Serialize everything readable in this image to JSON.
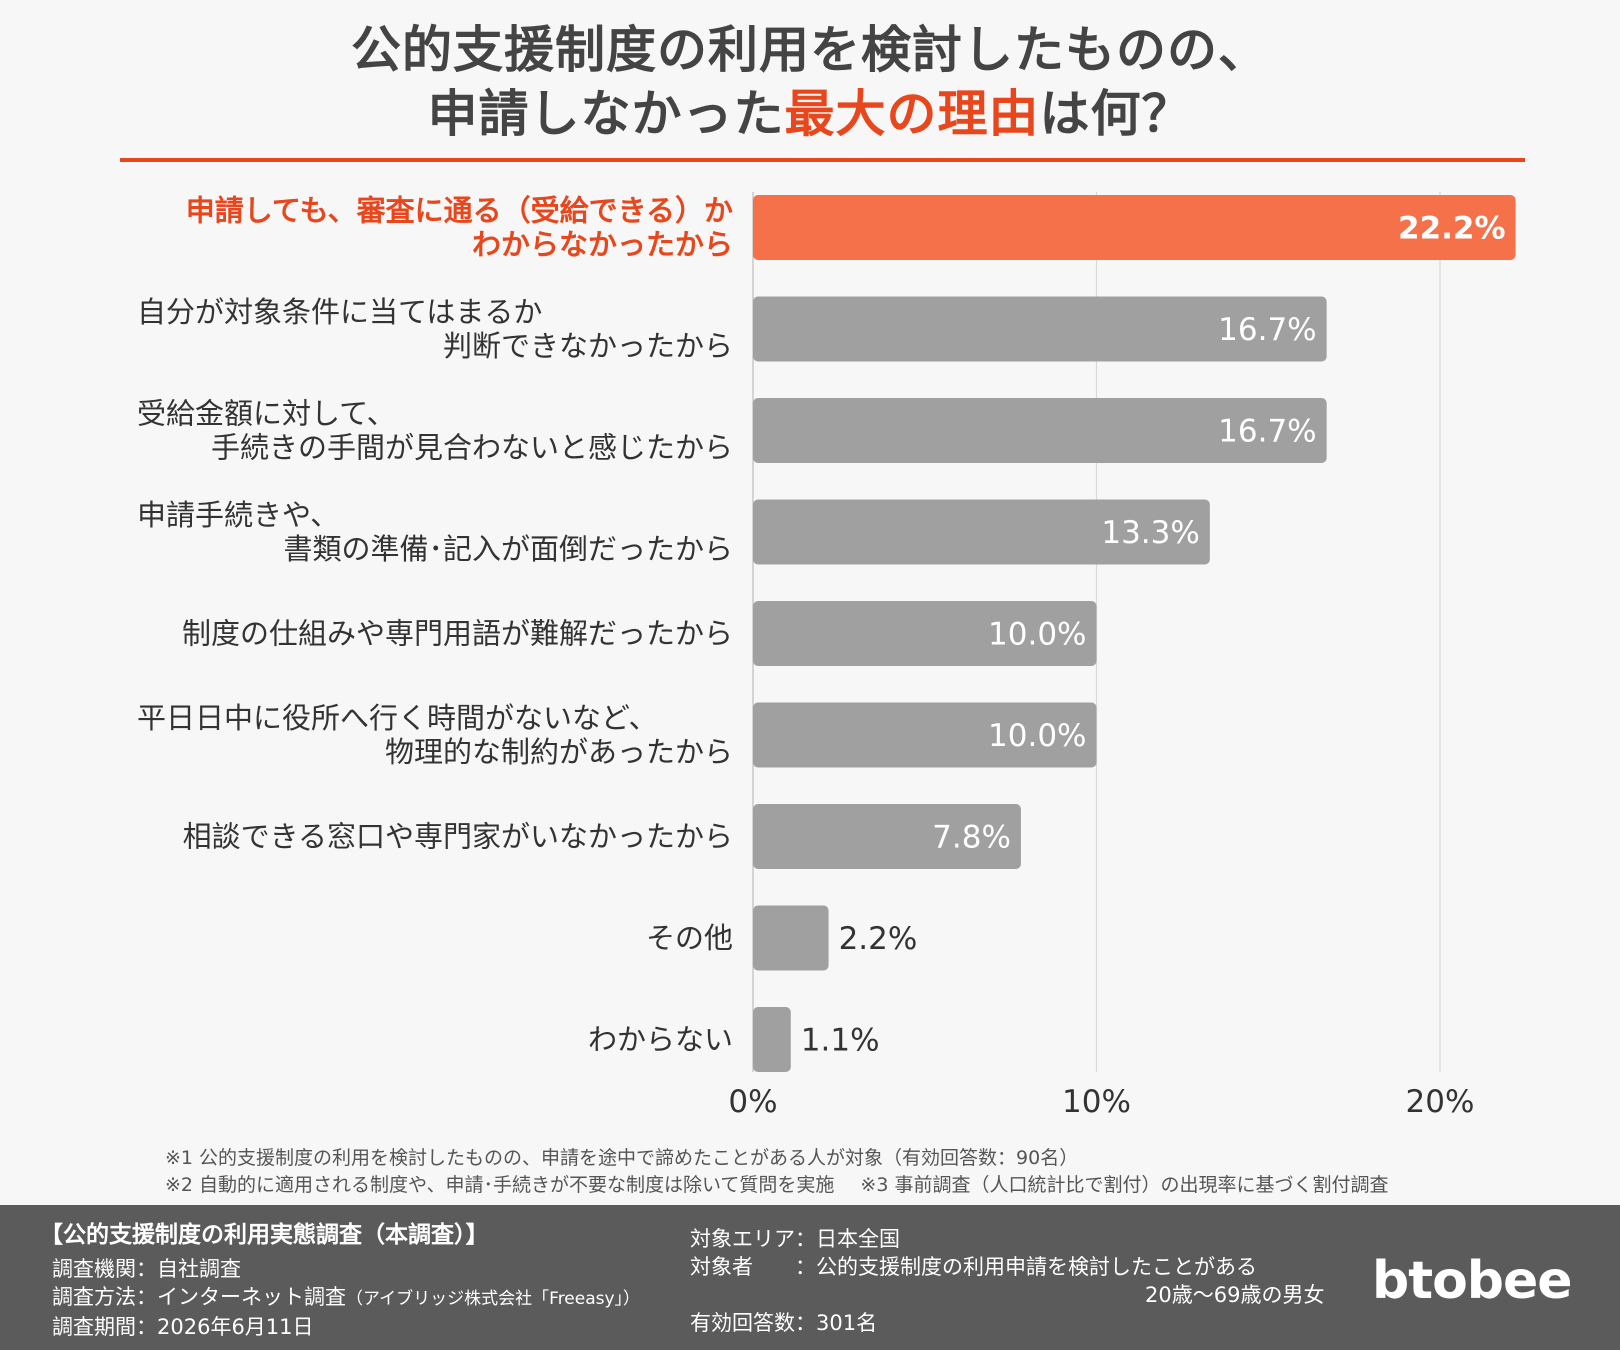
{
  "title": {
    "line1": "公的支援制度の利用を検討したものの、",
    "line2_prefix": "申請しなかった",
    "line2_highlight": "最大の理由",
    "line2_suffix": "は何？"
  },
  "chart_data": {
    "type": "bar",
    "orientation": "horizontal",
    "categories": [
      [
        "申請しても、審査に通る（受給できる）か",
        "わからなかったから"
      ],
      [
        "自分が対象条件に当てはまるか",
        "判断できなかったから"
      ],
      [
        "受給金額に対して、",
        "手続きの手間が見合わないと感じたから"
      ],
      [
        "申請手続きや、",
        "書類の準備･記入が面倒だったから"
      ],
      [
        "制度の仕組みや専門用語が難解だったから"
      ],
      [
        "平日日中に役所へ行く時間がないなど、",
        "物理的な制約があったから"
      ],
      [
        "相談できる窓口や専門家がいなかったから"
      ],
      [
        "その他"
      ],
      [
        "わからない"
      ]
    ],
    "values": [
      22.2,
      16.7,
      16.7,
      13.3,
      10.0,
      10.0,
      7.8,
      2.2,
      1.1
    ],
    "value_labels": [
      "22.2%",
      "16.7%",
      "16.7%",
      "13.3%",
      "10.0%",
      "10.0%",
      "7.8%",
      "2.2%",
      "1.1%"
    ],
    "highlight_index": 0,
    "xlim": [
      0,
      22.2
    ],
    "xticks": [
      0,
      10,
      20
    ],
    "xtick_labels": [
      "0%",
      "10%",
      "20%"
    ],
    "grid": true,
    "colors": {
      "highlight": "#f4714a",
      "highlight_text": "#e8471e",
      "default": "#a0a0a0",
      "grid": "#d9d9d9"
    }
  },
  "footnotes": {
    "note1": "※1 公的支援制度の利用を検討したものの、申請を途中で諦めたことがある人が対象（有効回答数：90名）",
    "note2": "※2 自動的に適用される制度や、申請･手続きが不要な制度は除いて質問を実施",
    "note3": "※3 事前調査（人口統計比で割付）の出現率に基づく割付調査"
  },
  "footer": {
    "survey_title": "【公的支援制度の利用実態調査（本調査）】",
    "org": "調査機関：自社調査",
    "method": "調査方法：インターネット調査",
    "method_note": "（アイブリッジ株式会社「Freeasy」）",
    "period": "調査期間：2026年6月11日",
    "area": "対象エリア：日本全国",
    "target": "対象者　　：公的支援制度の利用申請を検討したことがある",
    "target2": "20歳〜69歳の男女",
    "responses": "有効回答数：301名",
    "logo": "btobee"
  }
}
